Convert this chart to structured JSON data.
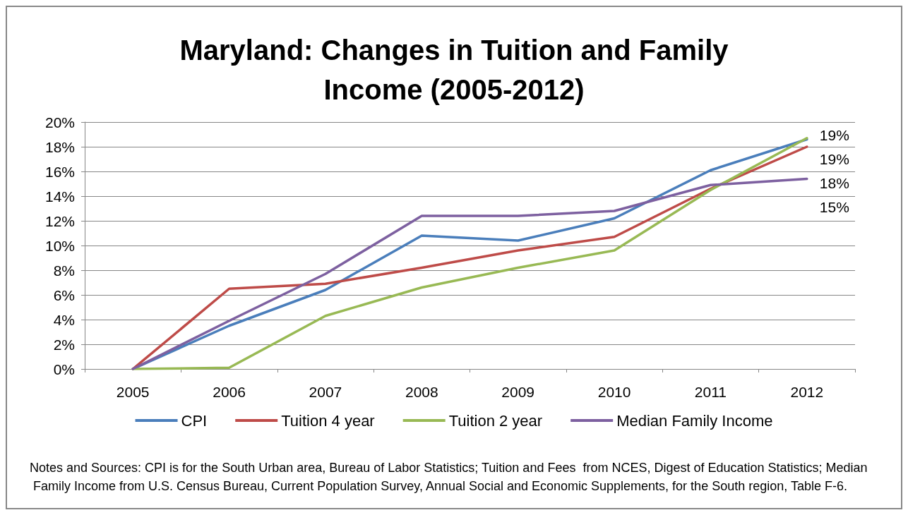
{
  "chart_data": {
    "type": "line",
    "title": "Maryland: Changes in Tuition and Family\nIncome (2005-2012)",
    "categories": [
      "2005",
      "2006",
      "2007",
      "2008",
      "2009",
      "2010",
      "2011",
      "2012"
    ],
    "series": [
      {
        "name": "CPI",
        "color": "#4a7ebb",
        "values": [
          0,
          3.5,
          6.4,
          10.8,
          10.4,
          12.2,
          16.1,
          18.6
        ],
        "value_labels": [
          null,
          null,
          null,
          null,
          null,
          null,
          null,
          "19%"
        ]
      },
      {
        "name": "Tuition 4 year",
        "color": "#be4b48",
        "values": [
          0,
          6.5,
          6.9,
          8.2,
          9.6,
          10.7,
          14.6,
          18.0
        ],
        "value_labels": [
          null,
          null,
          null,
          null,
          null,
          null,
          null,
          "18%"
        ]
      },
      {
        "name": "Tuition 2 year",
        "color": "#98b954",
        "values": [
          0,
          0.1,
          4.3,
          6.6,
          8.2,
          9.6,
          14.5,
          18.7
        ],
        "value_labels": [
          null,
          null,
          null,
          null,
          null,
          null,
          null,
          "19%"
        ]
      },
      {
        "name": "Median Family Income",
        "color": "#7d60a0",
        "values": [
          0,
          3.9,
          7.7,
          12.4,
          12.4,
          12.8,
          14.9,
          15.4
        ],
        "value_labels": [
          null,
          null,
          null,
          null,
          null,
          null,
          null,
          "15%"
        ]
      }
    ],
    "ylim": [
      0,
      20
    ],
    "yticks": [
      {
        "value": 0,
        "label": "0%"
      },
      {
        "value": 2,
        "label": "2%"
      },
      {
        "value": 4,
        "label": "4%"
      },
      {
        "value": 6,
        "label": "6%"
      },
      {
        "value": 8,
        "label": "8%"
      },
      {
        "value": 10,
        "label": "10%"
      },
      {
        "value": 12,
        "label": "12%"
      },
      {
        "value": 14,
        "label": "14%"
      },
      {
        "value": 16,
        "label": "16%"
      },
      {
        "value": 18,
        "label": "18%"
      },
      {
        "value": 20,
        "label": "20%"
      }
    ],
    "grid": "y",
    "legend": "bottom",
    "marker": "none",
    "line_style": "solid",
    "annotations": [
      "Notes and Sources: CPI is for the South Urban area, Bureau of Labor Statistics; Tuition and Fees  from NCES, Digest of Education Statistics; Median Family Income from U.S. Census Bureau, Current Population Survey, Annual Social and Economic Supplements, for the South region, Table F-6."
    ]
  }
}
